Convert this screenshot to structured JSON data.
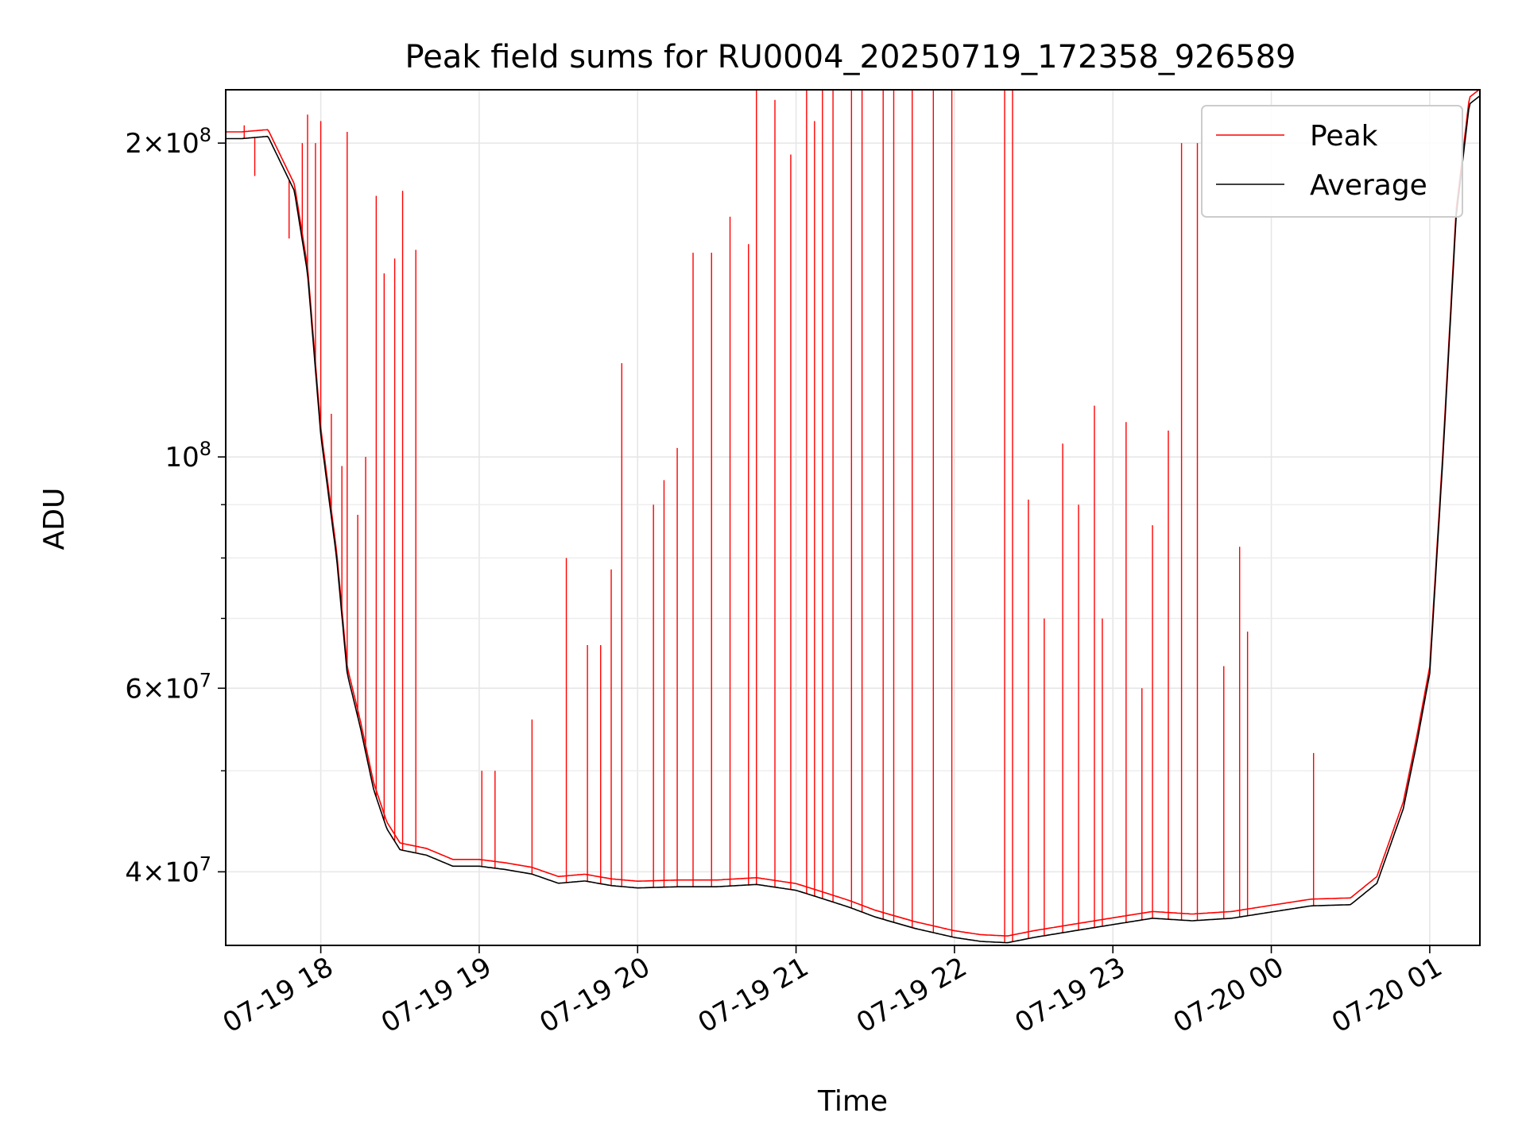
{
  "chart_data": {
    "type": "line",
    "title": "Peak field sums for RU0004_20250719_172358_926589",
    "xlabel": "Time",
    "ylabel": "ADU",
    "yscale": "log",
    "ylim": [
      34000000,
      225000000
    ],
    "xlim": [
      "2025-07-19 17:24",
      "2025-07-20 01:19"
    ],
    "grid": true,
    "legend": {
      "position": "top-right",
      "entries": [
        "Peak",
        "Average"
      ]
    },
    "x_ticks": [
      "07-19 18",
      "07-19 19",
      "07-19 20",
      "07-19 21",
      "07-19 22",
      "07-19 23",
      "07-20 00",
      "07-20 01"
    ],
    "y_ticks": [
      {
        "value": 200000000,
        "mantissa": "2",
        "exp": "8"
      },
      {
        "value": 100000000,
        "mantissa": "",
        "exp": "8"
      },
      {
        "value": 60000000,
        "mantissa": "6",
        "exp": "7"
      },
      {
        "value": 40000000,
        "mantissa": "4",
        "exp": "7"
      }
    ],
    "colors": {
      "Peak": "#ff0000",
      "Average": "#000000"
    },
    "series": [
      {
        "name": "Average",
        "x": [
          "2025-07-19 17:24",
          "2025-07-19 17:30",
          "2025-07-19 17:40",
          "2025-07-19 17:50",
          "2025-07-19 17:55",
          "2025-07-19 18:00",
          "2025-07-19 18:06",
          "2025-07-19 18:10",
          "2025-07-19 18:15",
          "2025-07-19 18:20",
          "2025-07-19 18:25",
          "2025-07-19 18:30",
          "2025-07-19 18:40",
          "2025-07-19 18:50",
          "2025-07-19 19:00",
          "2025-07-19 19:10",
          "2025-07-19 19:20",
          "2025-07-19 19:30",
          "2025-07-19 19:40",
          "2025-07-19 19:50",
          "2025-07-19 20:00",
          "2025-07-19 20:15",
          "2025-07-19 20:30",
          "2025-07-19 20:45",
          "2025-07-19 21:00",
          "2025-07-19 21:10",
          "2025-07-19 21:20",
          "2025-07-19 21:30",
          "2025-07-19 21:45",
          "2025-07-19 22:00",
          "2025-07-19 22:10",
          "2025-07-19 22:20",
          "2025-07-19 22:30",
          "2025-07-19 22:45",
          "2025-07-19 23:00",
          "2025-07-19 23:15",
          "2025-07-19 23:30",
          "2025-07-19 23:45",
          "2025-07-20 00:00",
          "2025-07-20 00:15",
          "2025-07-20 00:30",
          "2025-07-20 00:40",
          "2025-07-20 00:50",
          "2025-07-20 00:55",
          "2025-07-20 01:00",
          "2025-07-20 01:05",
          "2025-07-20 01:10",
          "2025-07-20 01:15",
          "2025-07-20 01:19"
        ],
        "values": [
          202000000,
          202000000,
          203000000,
          180000000,
          150000000,
          105000000,
          80000000,
          62000000,
          55000000,
          48000000,
          44000000,
          42000000,
          41500000,
          40500000,
          40500000,
          40200000,
          39800000,
          39000000,
          39200000,
          38800000,
          38600000,
          38700000,
          38700000,
          38900000,
          38400000,
          37700000,
          37000000,
          36200000,
          35300000,
          34600000,
          34300000,
          34200000,
          34600000,
          35100000,
          35600000,
          36100000,
          35900000,
          36100000,
          36600000,
          37100000,
          37200000,
          39000000,
          46000000,
          53000000,
          62000000,
          100000000,
          170000000,
          218000000,
          222000000
        ]
      },
      {
        "name": "Peak",
        "spikes": [
          {
            "x": "2025-07-19 17:31",
            "value": 208000000
          },
          {
            "x": "2025-07-19 17:35",
            "value": 186000000
          },
          {
            "x": "2025-07-19 17:48",
            "value": 162000000
          },
          {
            "x": "2025-07-19 17:53",
            "value": 200000000
          },
          {
            "x": "2025-07-19 17:55",
            "value": 213000000
          },
          {
            "x": "2025-07-19 17:58",
            "value": 200000000
          },
          {
            "x": "2025-07-19 18:00",
            "value": 210000000
          },
          {
            "x": "2025-07-19 18:04",
            "value": 110000000
          },
          {
            "x": "2025-07-19 18:08",
            "value": 98000000
          },
          {
            "x": "2025-07-19 18:10",
            "value": 205000000
          },
          {
            "x": "2025-07-19 18:14",
            "value": 88000000
          },
          {
            "x": "2025-07-19 18:17",
            "value": 100000000
          },
          {
            "x": "2025-07-19 18:21",
            "value": 178000000
          },
          {
            "x": "2025-07-19 18:24",
            "value": 150000000
          },
          {
            "x": "2025-07-19 18:28",
            "value": 155000000
          },
          {
            "x": "2025-07-19 18:31",
            "value": 180000000
          },
          {
            "x": "2025-07-19 18:36",
            "value": 158000000
          },
          {
            "x": "2025-07-19 19:01",
            "value": 50000000
          },
          {
            "x": "2025-07-19 19:06",
            "value": 50000000
          },
          {
            "x": "2025-07-19 19:20",
            "value": 56000000
          },
          {
            "x": "2025-07-19 19:33",
            "value": 80000000
          },
          {
            "x": "2025-07-19 19:41",
            "value": 66000000
          },
          {
            "x": "2025-07-19 19:46",
            "value": 66000000
          },
          {
            "x": "2025-07-19 19:50",
            "value": 78000000
          },
          {
            "x": "2025-07-19 19:54",
            "value": 123000000
          },
          {
            "x": "2025-07-19 20:06",
            "value": 90000000
          },
          {
            "x": "2025-07-19 20:10",
            "value": 95000000
          },
          {
            "x": "2025-07-19 20:15",
            "value": 102000000
          },
          {
            "x": "2025-07-19 20:21",
            "value": 157000000
          },
          {
            "x": "2025-07-19 20:28",
            "value": 157000000
          },
          {
            "x": "2025-07-19 20:35",
            "value": 170000000
          },
          {
            "x": "2025-07-19 20:42",
            "value": 160000000
          },
          {
            "x": "2025-07-19 20:45",
            "value": 225000000
          },
          {
            "x": "2025-07-19 20:52",
            "value": 220000000
          },
          {
            "x": "2025-07-19 20:58",
            "value": 195000000
          },
          {
            "x": "2025-07-19 21:04",
            "value": 225000000
          },
          {
            "x": "2025-07-19 21:07",
            "value": 210000000
          },
          {
            "x": "2025-07-19 21:10",
            "value": 225000000
          },
          {
            "x": "2025-07-19 21:14",
            "value": 225000000
          },
          {
            "x": "2025-07-19 21:21",
            "value": 225000000
          },
          {
            "x": "2025-07-19 21:25",
            "value": 225000000
          },
          {
            "x": "2025-07-19 21:33",
            "value": 225000000
          },
          {
            "x": "2025-07-19 21:37",
            "value": 225000000
          },
          {
            "x": "2025-07-19 21:44",
            "value": 225000000
          },
          {
            "x": "2025-07-19 21:52",
            "value": 225000000
          },
          {
            "x": "2025-07-19 21:59",
            "value": 225000000
          },
          {
            "x": "2025-07-19 22:19",
            "value": 225000000
          },
          {
            "x": "2025-07-19 22:22",
            "value": 225000000
          },
          {
            "x": "2025-07-19 22:28",
            "value": 91000000
          },
          {
            "x": "2025-07-19 22:34",
            "value": 70000000
          },
          {
            "x": "2025-07-19 22:41",
            "value": 103000000
          },
          {
            "x": "2025-07-19 22:47",
            "value": 90000000
          },
          {
            "x": "2025-07-19 22:53",
            "value": 112000000
          },
          {
            "x": "2025-07-19 22:56",
            "value": 70000000
          },
          {
            "x": "2025-07-19 23:05",
            "value": 108000000
          },
          {
            "x": "2025-07-19 23:11",
            "value": 60000000
          },
          {
            "x": "2025-07-19 23:15",
            "value": 86000000
          },
          {
            "x": "2025-07-19 23:21",
            "value": 106000000
          },
          {
            "x": "2025-07-19 23:26",
            "value": 200000000
          },
          {
            "x": "2025-07-19 23:32",
            "value": 200000000
          },
          {
            "x": "2025-07-19 23:42",
            "value": 63000000
          },
          {
            "x": "2025-07-19 23:48",
            "value": 82000000
          },
          {
            "x": "2025-07-19 23:51",
            "value": 68000000
          },
          {
            "x": "2025-07-20 00:16",
            "value": 52000000
          }
        ]
      }
    ]
  }
}
